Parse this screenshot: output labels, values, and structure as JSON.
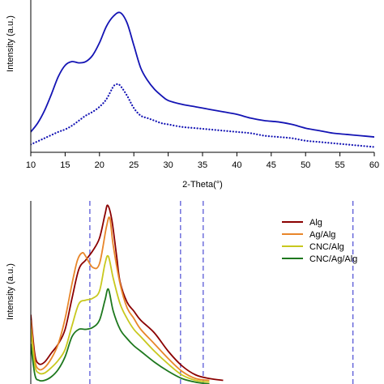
{
  "chart_data": [
    {
      "type": "line",
      "title": "",
      "xlabel": "2-Theta(°)",
      "ylabel": "Intensity (a.u.)",
      "xlim": [
        10,
        60
      ],
      "xticks": [
        10,
        15,
        20,
        25,
        30,
        35,
        40,
        45,
        50,
        55,
        60
      ],
      "y_ticks_shown": false,
      "grid": false,
      "legend": "none",
      "series": [
        {
          "style": "solid",
          "color": "#1414b4",
          "x": [
            10,
            11,
            12,
            13,
            14,
            15,
            16,
            17,
            18,
            19,
            20,
            21,
            22,
            23,
            24,
            25,
            26,
            27,
            28,
            29,
            30,
            32,
            34,
            36,
            38,
            40,
            42,
            44,
            46,
            48,
            50,
            52,
            54,
            56,
            58,
            60
          ],
          "y": [
            13,
            20,
            30,
            43,
            57,
            66,
            69,
            68,
            69,
            74,
            84,
            97,
            105,
            108,
            100,
            82,
            64,
            54,
            47,
            42,
            38,
            35,
            33,
            31,
            29,
            27,
            24,
            22,
            21,
            19,
            16,
            14,
            12,
            11,
            10,
            9
          ]
        },
        {
          "style": "dotted",
          "color": "#1414b4",
          "x": [
            10,
            12,
            14,
            15,
            16,
            17,
            18,
            19,
            20,
            21,
            22,
            22.5,
            23,
            24,
            25,
            26,
            27,
            28,
            29,
            30,
            32,
            34,
            36,
            38,
            40,
            42,
            44,
            46,
            48,
            50,
            52,
            54,
            56,
            58,
            60
          ],
          "y": [
            3,
            8,
            13,
            15,
            18,
            22,
            26,
            29,
            33,
            39,
            49,
            51,
            50,
            42,
            32,
            26,
            24,
            22,
            20,
            19,
            17,
            16,
            15,
            14,
            13,
            12,
            10,
            9,
            8,
            6,
            5,
            4,
            3,
            2,
            1
          ]
        }
      ]
    },
    {
      "type": "line",
      "title": "",
      "xlabel": "",
      "ylabel": "Intensity (a.u.)",
      "xlim": [
        10,
        60
      ],
      "y_ticks_shown": false,
      "grid": false,
      "legend": "top-right",
      "reference_lines_x": [
        18.6,
        31.8,
        35.1,
        56.9
      ],
      "series": [
        {
          "name": "Alg",
          "color": "#8b0000",
          "x": [
            10,
            10.6,
            11.2,
            12,
            13,
            14,
            15,
            16,
            17,
            18,
            19,
            20,
            20.8,
            21.2,
            21.8,
            22.5,
            23,
            24,
            25,
            26,
            28,
            30,
            32,
            34,
            36,
            38
          ],
          "y": [
            38,
            16,
            11,
            12,
            17,
            22,
            30,
            47,
            63,
            68,
            73,
            80,
            93,
            98,
            90,
            70,
            56,
            45,
            40,
            35,
            28,
            18,
            10,
            5,
            3,
            2
          ]
        },
        {
          "name": "Ag/Alg",
          "color": "#e8862a",
          "x": [
            10,
            10.6,
            11.2,
            12,
            13,
            14,
            15,
            16,
            16.8,
            17.5,
            18,
            19,
            20,
            21,
            21.5,
            22,
            23,
            24,
            25,
            26,
            28,
            30,
            32,
            34,
            36
          ],
          "y": [
            35,
            13,
            8,
            9,
            14,
            22,
            36,
            55,
            68,
            72,
            70,
            64,
            66,
            86,
            91,
            76,
            55,
            42,
            36,
            30,
            22,
            14,
            7,
            3,
            2
          ]
        },
        {
          "name": "CNC/Alg",
          "color": "#c8c81e",
          "x": [
            10,
            10.6,
            11.2,
            12,
            13,
            14,
            15,
            16,
            17,
            18,
            19,
            20,
            20.8,
            21.3,
            22,
            23,
            24,
            25,
            26,
            28,
            30,
            32,
            34,
            36
          ],
          "y": [
            30,
            10,
            6,
            6,
            9,
            13,
            19,
            32,
            44,
            46,
            47,
            51,
            66,
            70,
            58,
            44,
            36,
            30,
            26,
            18,
            11,
            5,
            2,
            1
          ]
        },
        {
          "name": "CNC/Ag/Alg",
          "color": "#1e781e",
          "x": [
            10,
            10.6,
            11.2,
            12,
            13,
            14,
            15,
            16,
            17,
            18,
            19,
            20,
            20.8,
            21.3,
            22,
            23,
            24,
            25,
            26,
            28,
            30,
            32,
            34,
            36
          ],
          "y": [
            22,
            5,
            2,
            2,
            4,
            8,
            15,
            26,
            30,
            30,
            31,
            35,
            46,
            52,
            40,
            30,
            25,
            21,
            18,
            12,
            7,
            3,
            1,
            0
          ]
        }
      ]
    }
  ]
}
